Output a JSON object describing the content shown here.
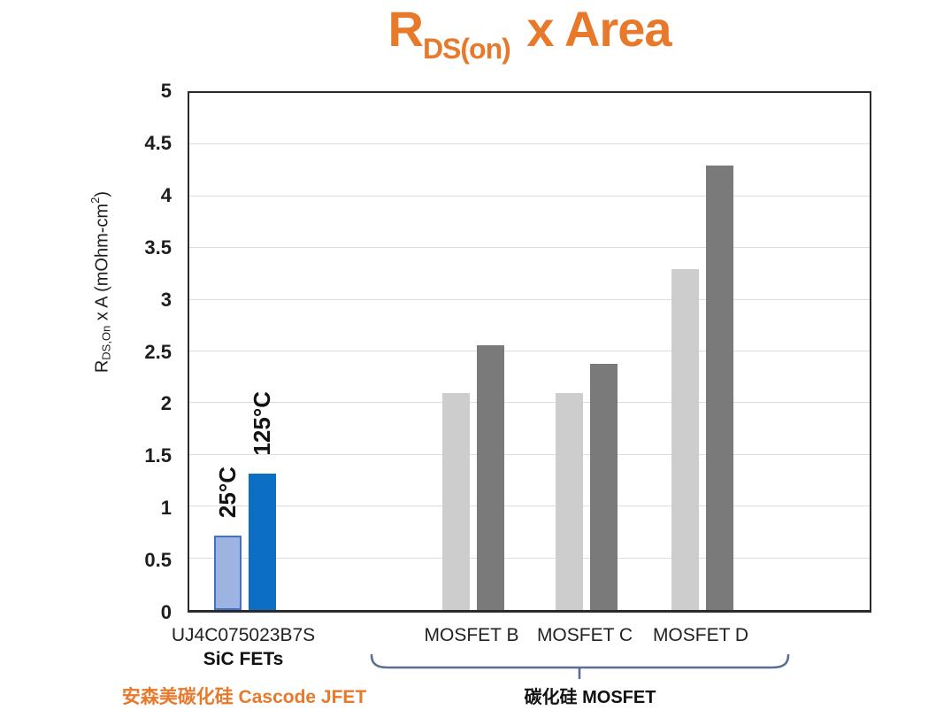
{
  "title": {
    "prefix": "R",
    "subscript": "DS(on)",
    "suffix": " x Area"
  },
  "colors": {
    "accent_orange": "#E8792B",
    "blue_25c_fill": "#9DB3E2",
    "blue_25c_border": "#4472C4",
    "blue_125c_fill": "#0D6FC4",
    "gray_25c_fill": "#CDCDCD",
    "gray_125c_fill": "#7A7A7A",
    "gridline": "#DCDCDC",
    "brace": "#5B6E92"
  },
  "y_axis": {
    "title_r": "R",
    "title_sub": "DS,On",
    "title_mid": " x A (mOhm-cm",
    "title_sup": "2",
    "title_end": ")",
    "ticks": [
      "0",
      "0.5",
      "1",
      "1.5",
      "2",
      "2.5",
      "3",
      "3.5",
      "4",
      "4.5",
      "5"
    ]
  },
  "chart_data": {
    "type": "bar",
    "title": "RDS(on) x Area",
    "categories": [
      "UJ4C075023B7S",
      "MOSFET B",
      "MOSFET C",
      "MOSFET D"
    ],
    "series": [
      {
        "name": "25°C",
        "values": [
          0.72,
          2.1,
          2.1,
          3.3
        ],
        "fills": [
          "#9DB3E2",
          "#CDCDCD",
          "#CDCDCD",
          "#CDCDCD"
        ]
      },
      {
        "name": "125°C",
        "values": [
          1.32,
          2.56,
          2.38,
          4.3
        ],
        "fills": [
          "#0D6FC4",
          "#7A7A7A",
          "#7A7A7A",
          "#7A7A7A"
        ]
      }
    ],
    "xlabel": "",
    "ylabel": "RDS,On x A (mOhm-cm2)",
    "ylim": [
      0,
      5
    ],
    "ytick_step": 0.5,
    "grid": "horizontal",
    "bar_annotations": "temperature labels rotated above first category bars only"
  },
  "footer": {
    "sic_fets": "SiC FETs",
    "jfet_note": "安森美碳化硅 Cascode JFET",
    "mosfet_note": "碳化硅 MOSFET"
  }
}
